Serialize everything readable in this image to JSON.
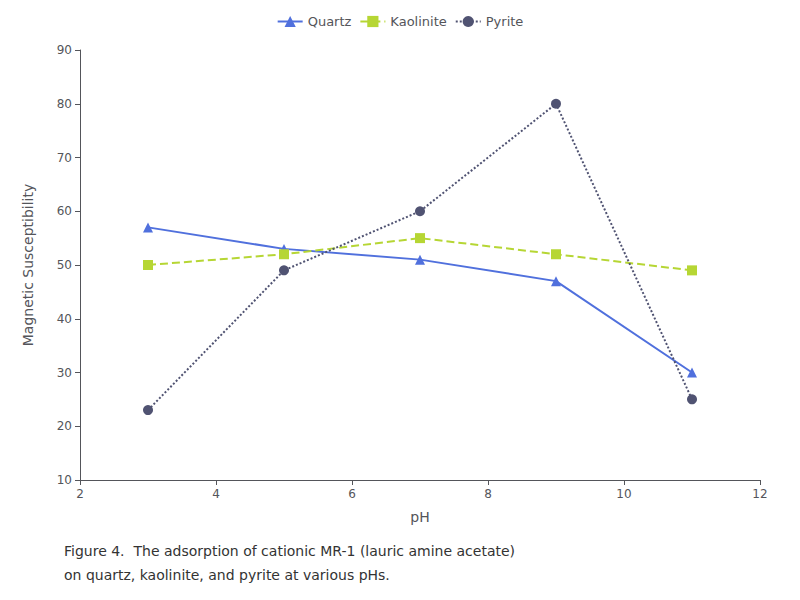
{
  "chart_data": {
    "type": "line",
    "x_label": "pH",
    "y_label": "Magnetic Susceptibility",
    "annotations": [
      "Figure 4.  The adsorption of cationic MR-1 (lauric amine acetate)",
      "on quartz, kaolinite, and pyrite at various pHs."
    ],
    "x": [
      3,
      5,
      7,
      9,
      11
    ],
    "series": [
      {
        "name": "Quartz",
        "values": [
          57,
          53,
          51,
          47,
          30
        ],
        "marker": "triangle",
        "line_style": "solid"
      },
      {
        "name": "Kaolinite",
        "values": [
          50,
          52,
          55,
          52,
          49
        ],
        "marker": "square",
        "line_style": "dashed"
      },
      {
        "name": "Pyrite",
        "values": [
          23,
          49,
          60,
          80,
          25
        ],
        "marker": "circle",
        "line_style": "dotted"
      }
    ],
    "xlim": [
      2,
      12
    ],
    "xticks": [
      2,
      4,
      6,
      8,
      10,
      12
    ],
    "ylim": [
      10,
      90
    ],
    "yticks": [
      10,
      20,
      30,
      40,
      50,
      60,
      70,
      80,
      90
    ],
    "grid": false,
    "legend": "top"
  }
}
